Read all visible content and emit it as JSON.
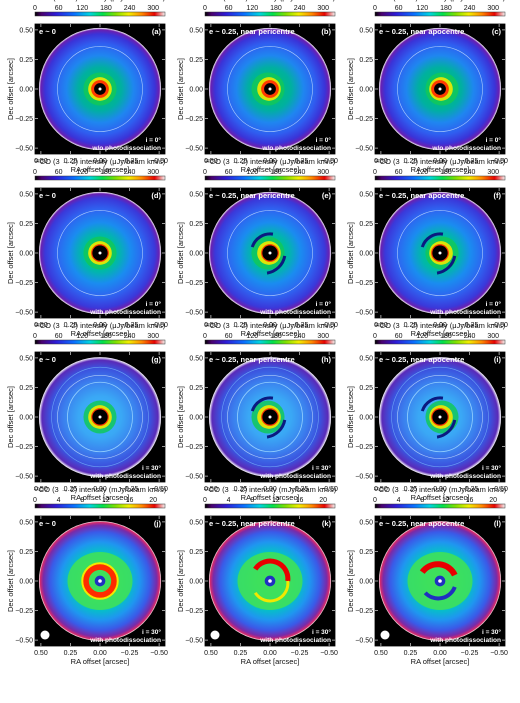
{
  "figure": {
    "rows": [
      {
        "colorbar_title": "¹²CO (3 → 2) intensity (μJy/beam km/s)",
        "colorbar_ticks": [
          "0",
          "60",
          "120",
          "180",
          "240",
          "300"
        ],
        "colorbar_max": 330,
        "inclination": "i = 0°",
        "photodissociation": "w/o photodissociation",
        "style": "ring",
        "beam": false
      },
      {
        "colorbar_title": "¹²CO (3 → 2) intensity (μJy/beam km/s)",
        "colorbar_ticks": [
          "0",
          "60",
          "120",
          "180",
          "240",
          "300"
        ],
        "colorbar_max": 330,
        "inclination": "i = 0°",
        "photodissociation": "with photodissociation",
        "style": "ring-photo",
        "beam": false
      },
      {
        "colorbar_title": "¹²CO (3 → 2) intensity (μJy/beam km/s)",
        "colorbar_ticks": [
          "0",
          "60",
          "120",
          "180",
          "240",
          "300"
        ],
        "colorbar_max": 330,
        "inclination": "i = 30°",
        "photodissociation": "with photodissociation",
        "style": "inclined",
        "beam": false
      },
      {
        "colorbar_title": "¹²CO (3 → 2) intensity (mJy/beam km/s)",
        "colorbar_ticks": [
          "0",
          "4",
          "8",
          "12",
          "16",
          "20"
        ],
        "colorbar_max": 22,
        "inclination": "i = 30°",
        "photodissociation": "with photodissociation",
        "style": "convolved",
        "beam": true
      }
    ],
    "columns": [
      {
        "title": "e ~ 0",
        "variant": "circular"
      },
      {
        "title": "e ~ 0.25, near pericentre",
        "variant": "peri"
      },
      {
        "title": "e ~ 0.25, near apocentre",
        "variant": "apo"
      }
    ],
    "panel_letters": [
      "(a)",
      "(b)",
      "(c)",
      "(d)",
      "(e)",
      "(f)",
      "(g)",
      "(h)",
      "(i)",
      "(j)",
      "(k)",
      "(l)"
    ],
    "xlabel": "RA offset [arcsec]",
    "ylabel": "Dec offset [arcsec]",
    "x_ticks": [
      "0.50",
      "0.25",
      "0.00",
      "−0.25",
      "−0.50"
    ],
    "y_ticks": [
      "0.50",
      "0.25",
      "0.00",
      "−0.25",
      "−0.50"
    ]
  },
  "chart_data": {
    "type": "heatmap",
    "panels": 12,
    "layout": "4 rows × 3 columns",
    "x_range": [
      0.55,
      -0.55
    ],
    "y_range": [
      -0.55,
      0.55
    ],
    "xlabel": "RA offset [arcsec]",
    "ylabel": "Dec offset [arcsec]",
    "colormap": "rainbow (black → purple → blue → green → yellow → red → white)",
    "colorbar_range_rows_1_to_3": [
      0,
      330
    ],
    "colorbar_unit_rows_1_to_3": "μJy/beam km/s",
    "colorbar_range_row_4": [
      0,
      22
    ],
    "colorbar_unit_row_4": "mJy/beam km/s"
  }
}
